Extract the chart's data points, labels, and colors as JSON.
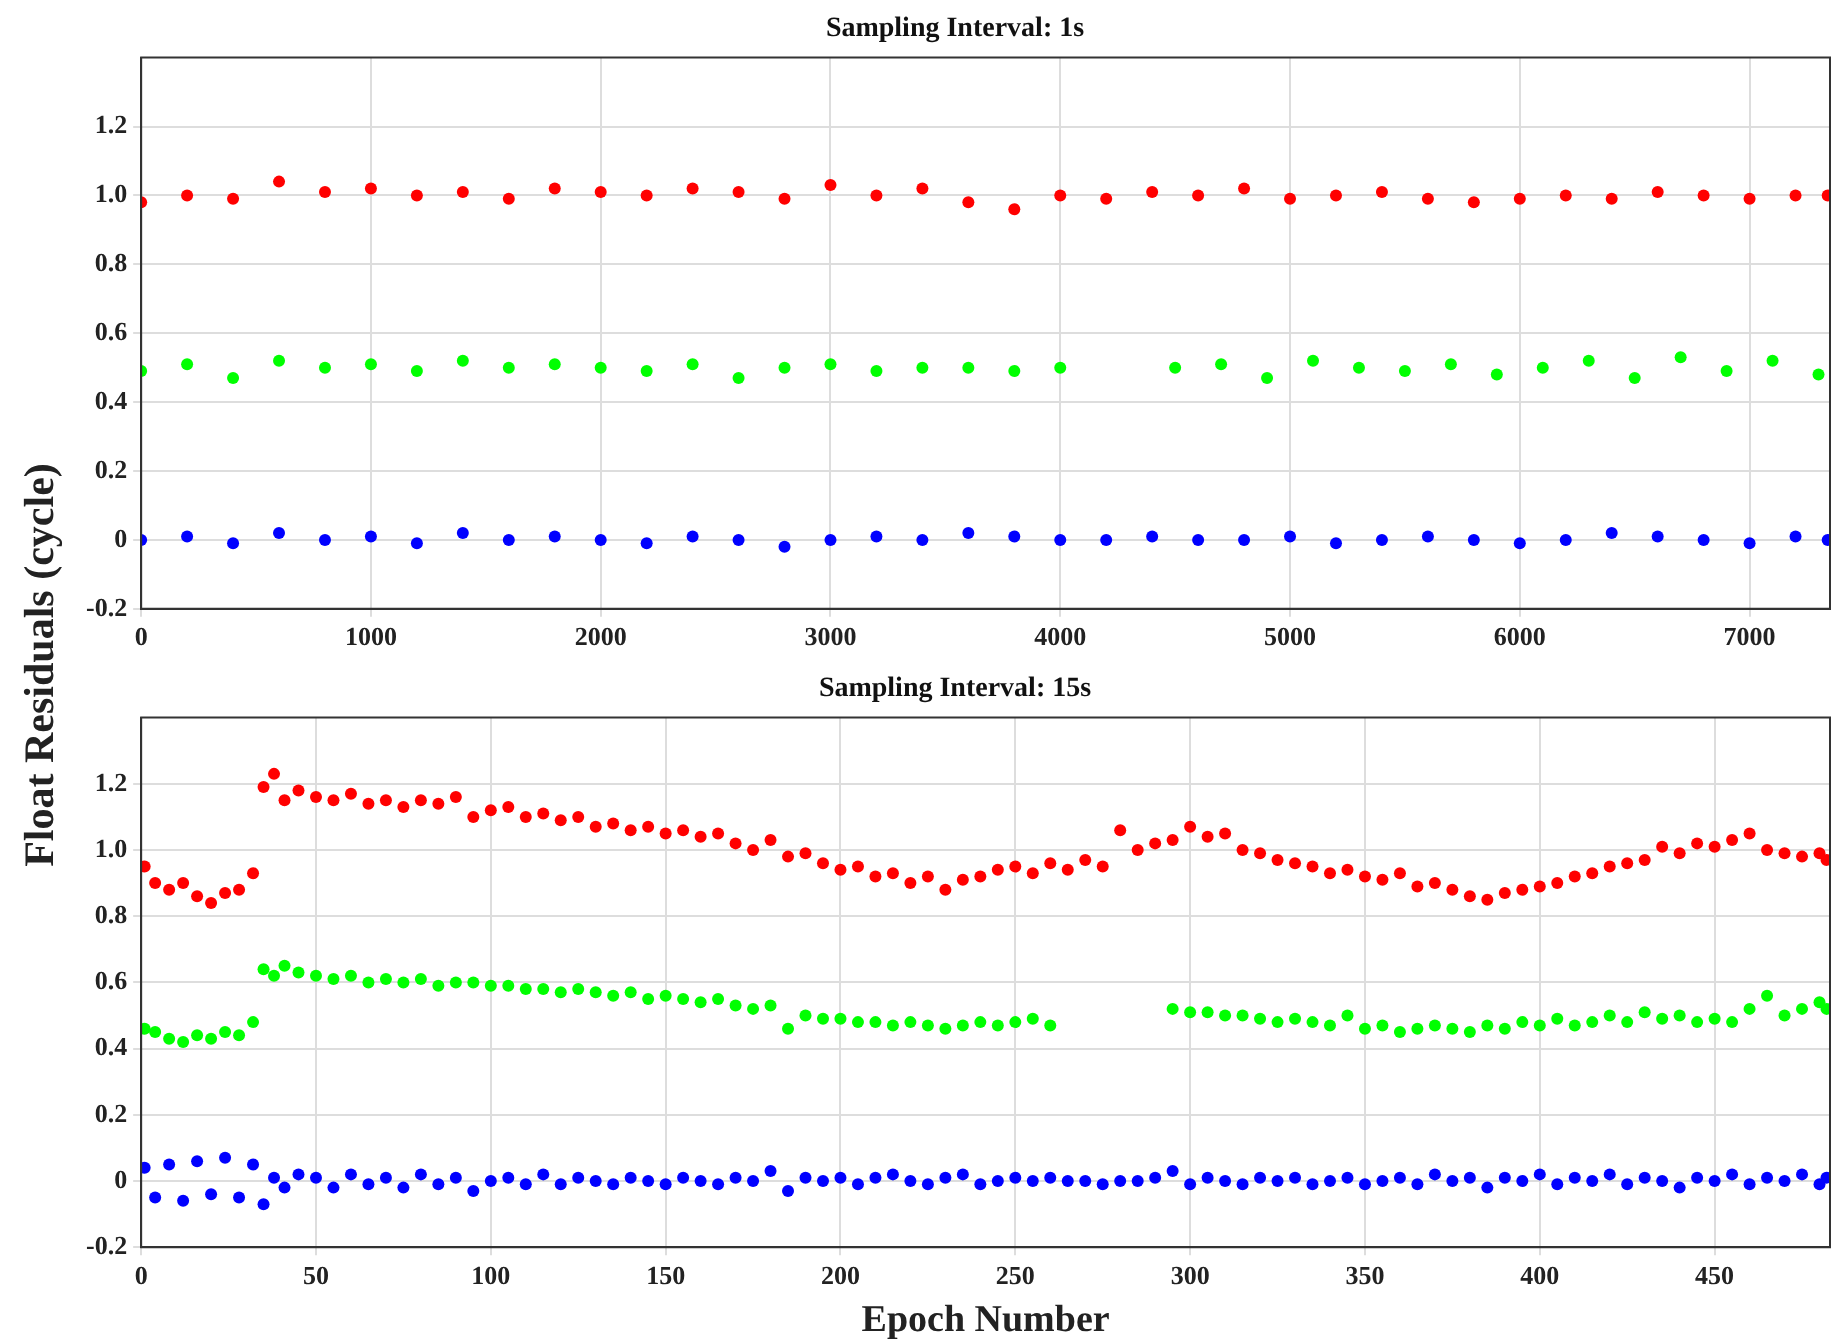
{
  "chart_data": [
    {
      "type": "scatter",
      "title": "Sampling Interval: 1s",
      "ylabel": "Float Residuals (cycle)",
      "xlim": [
        0,
        7350
      ],
      "ylim": [
        -0.2,
        1.4
      ],
      "xticks": [
        0,
        1000,
        2000,
        3000,
        4000,
        5000,
        6000,
        7000
      ],
      "yticks": [
        -0.2,
        0,
        0.2,
        0.4,
        0.6,
        0.8,
        {
          "value": 1,
          "label": "1.0"
        },
        1.2
      ],
      "grid": true,
      "marker": "circle",
      "series": [
        {
          "color": "#ff0000",
          "x": [
            0,
            200,
            400,
            600,
            800,
            1000,
            1200,
            1400,
            1600,
            1800,
            2000,
            2200,
            2400,
            2600,
            2800,
            3000,
            3200,
            3400,
            3600,
            3800,
            4000,
            4200,
            4400,
            4600,
            4800,
            5000,
            5200,
            5400,
            5600,
            5800,
            6000,
            6200,
            6400,
            6600,
            6800,
            7000,
            7200,
            7340
          ],
          "values": [
            0.98,
            1.0,
            0.99,
            1.04,
            1.01,
            1.02,
            1.0,
            1.01,
            0.99,
            1.02,
            1.01,
            1.0,
            1.02,
            1.01,
            0.99,
            1.03,
            1.0,
            1.02,
            0.98,
            0.96,
            1.0,
            0.99,
            1.01,
            1.0,
            1.02,
            0.99,
            1.0,
            1.01,
            0.99,
            0.98,
            0.99,
            1.0,
            0.99,
            1.01,
            1.0,
            0.99,
            1.0,
            1.0
          ]
        },
        {
          "color": "#00ff00",
          "x": [
            0,
            200,
            400,
            600,
            800,
            1000,
            1200,
            1400,
            1600,
            1800,
            2000,
            2200,
            2400,
            2600,
            2800,
            3000,
            3200,
            3400,
            3600,
            3800,
            4000,
            4500,
            4700,
            4900,
            5100,
            5300,
            5500,
            5700,
            5900,
            6100,
            6300,
            6500,
            6700,
            6900,
            7100,
            7300
          ],
          "values": [
            0.49,
            0.51,
            0.47,
            0.52,
            0.5,
            0.51,
            0.49,
            0.52,
            0.5,
            0.51,
            0.5,
            0.49,
            0.51,
            0.47,
            0.5,
            0.51,
            0.49,
            0.5,
            0.5,
            0.49,
            0.5,
            0.5,
            0.51,
            0.47,
            0.52,
            0.5,
            0.49,
            0.51,
            0.48,
            0.5,
            0.52,
            0.47,
            0.53,
            0.49,
            0.52,
            0.48
          ]
        },
        {
          "color": "#0000ff",
          "x": [
            0,
            200,
            400,
            600,
            800,
            1000,
            1200,
            1400,
            1600,
            1800,
            2000,
            2200,
            2400,
            2600,
            2800,
            3000,
            3200,
            3400,
            3600,
            3800,
            4000,
            4200,
            4400,
            4600,
            4800,
            5000,
            5200,
            5400,
            5600,
            5800,
            6000,
            6200,
            6400,
            6600,
            6800,
            7000,
            7200,
            7340
          ],
          "values": [
            0.0,
            0.01,
            -0.01,
            0.02,
            0.0,
            0.01,
            -0.01,
            0.02,
            0.0,
            0.01,
            0.0,
            -0.01,
            0.01,
            0.0,
            -0.02,
            0.0,
            0.01,
            0.0,
            0.02,
            0.01,
            0.0,
            0.0,
            0.01,
            0.0,
            0.0,
            0.01,
            -0.01,
            0.0,
            0.01,
            0.0,
            -0.01,
            0.0,
            0.02,
            0.01,
            0.0,
            -0.01,
            0.01,
            0.0
          ]
        }
      ]
    },
    {
      "type": "scatter",
      "title": "Sampling Interval: 15s",
      "xlabel": "Epoch Number",
      "xlim": [
        0,
        483
      ],
      "ylim": [
        -0.2,
        1.4
      ],
      "xticks": [
        0,
        50,
        100,
        150,
        200,
        250,
        300,
        350,
        400,
        450
      ],
      "yticks": [
        -0.2,
        0,
        0.2,
        0.4,
        0.6,
        0.8,
        {
          "value": 1,
          "label": "1.0"
        },
        1.2
      ],
      "grid": true,
      "marker": "circle",
      "series": [
        {
          "color": "#ff0000",
          "x": [
            1,
            4,
            8,
            12,
            16,
            20,
            24,
            28,
            32,
            35,
            38,
            41,
            45,
            50,
            55,
            60,
            65,
            70,
            75,
            80,
            85,
            90,
            95,
            100,
            105,
            110,
            115,
            120,
            125,
            130,
            135,
            140,
            145,
            150,
            155,
            160,
            165,
            170,
            175,
            180,
            185,
            190,
            195,
            200,
            205,
            210,
            215,
            220,
            225,
            230,
            235,
            240,
            245,
            250,
            255,
            260,
            265,
            270,
            275,
            280,
            285,
            290,
            295,
            300,
            305,
            310,
            315,
            320,
            325,
            330,
            335,
            340,
            345,
            350,
            355,
            360,
            365,
            370,
            375,
            380,
            385,
            390,
            395,
            400,
            405,
            410,
            415,
            420,
            425,
            430,
            435,
            440,
            445,
            450,
            455,
            460,
            465,
            470,
            475,
            480,
            482
          ],
          "values": [
            0.95,
            0.9,
            0.88,
            0.9,
            0.86,
            0.84,
            0.87,
            0.88,
            0.93,
            1.19,
            1.23,
            1.15,
            1.18,
            1.16,
            1.15,
            1.17,
            1.14,
            1.15,
            1.13,
            1.15,
            1.14,
            1.16,
            1.1,
            1.12,
            1.13,
            1.1,
            1.11,
            1.09,
            1.1,
            1.07,
            1.08,
            1.06,
            1.07,
            1.05,
            1.06,
            1.04,
            1.05,
            1.02,
            1.0,
            1.03,
            0.98,
            0.99,
            0.96,
            0.94,
            0.95,
            0.92,
            0.93,
            0.9,
            0.92,
            0.88,
            0.91,
            0.92,
            0.94,
            0.95,
            0.93,
            0.96,
            0.94,
            0.97,
            0.95,
            1.06,
            1.0,
            1.02,
            1.03,
            1.07,
            1.04,
            1.05,
            1.0,
            0.99,
            0.97,
            0.96,
            0.95,
            0.93,
            0.94,
            0.92,
            0.91,
            0.93,
            0.89,
            0.9,
            0.88,
            0.86,
            0.85,
            0.87,
            0.88,
            0.89,
            0.9,
            0.92,
            0.93,
            0.95,
            0.96,
            0.97,
            1.01,
            0.99,
            1.02,
            1.01,
            1.03,
            1.05,
            1.0,
            0.99,
            0.98,
            0.99,
            0.97
          ]
        },
        {
          "color": "#00ff00",
          "x": [
            1,
            4,
            8,
            12,
            16,
            20,
            24,
            28,
            32,
            35,
            38,
            41,
            45,
            50,
            55,
            60,
            65,
            70,
            75,
            80,
            85,
            90,
            95,
            100,
            105,
            110,
            115,
            120,
            125,
            130,
            135,
            140,
            145,
            150,
            155,
            160,
            165,
            170,
            175,
            180,
            185,
            190,
            195,
            200,
            205,
            210,
            215,
            220,
            225,
            230,
            235,
            240,
            245,
            250,
            255,
            260,
            295,
            300,
            305,
            310,
            315,
            320,
            325,
            330,
            335,
            340,
            345,
            350,
            355,
            360,
            365,
            370,
            375,
            380,
            385,
            390,
            395,
            400,
            405,
            410,
            415,
            420,
            425,
            430,
            435,
            440,
            445,
            450,
            455,
            460,
            465,
            470,
            475,
            480,
            482
          ],
          "values": [
            0.46,
            0.45,
            0.43,
            0.42,
            0.44,
            0.43,
            0.45,
            0.44,
            0.48,
            0.64,
            0.62,
            0.65,
            0.63,
            0.62,
            0.61,
            0.62,
            0.6,
            0.61,
            0.6,
            0.61,
            0.59,
            0.6,
            0.6,
            0.59,
            0.59,
            0.58,
            0.58,
            0.57,
            0.58,
            0.57,
            0.56,
            0.57,
            0.55,
            0.56,
            0.55,
            0.54,
            0.55,
            0.53,
            0.52,
            0.53,
            0.46,
            0.5,
            0.49,
            0.49,
            0.48,
            0.48,
            0.47,
            0.48,
            0.47,
            0.46,
            0.47,
            0.48,
            0.47,
            0.48,
            0.49,
            0.47,
            0.52,
            0.51,
            0.51,
            0.5,
            0.5,
            0.49,
            0.48,
            0.49,
            0.48,
            0.47,
            0.5,
            0.46,
            0.47,
            0.45,
            0.46,
            0.47,
            0.46,
            0.45,
            0.47,
            0.46,
            0.48,
            0.47,
            0.49,
            0.47,
            0.48,
            0.5,
            0.48,
            0.51,
            0.49,
            0.5,
            0.48,
            0.49,
            0.48,
            0.52,
            0.56,
            0.5,
            0.52,
            0.54,
            0.52
          ]
        },
        {
          "color": "#0000ff",
          "x": [
            1,
            4,
            8,
            12,
            16,
            20,
            24,
            28,
            32,
            35,
            38,
            41,
            45,
            50,
            55,
            60,
            65,
            70,
            75,
            80,
            85,
            90,
            95,
            100,
            105,
            110,
            115,
            120,
            125,
            130,
            135,
            140,
            145,
            150,
            155,
            160,
            165,
            170,
            175,
            180,
            185,
            190,
            195,
            200,
            205,
            210,
            215,
            220,
            225,
            230,
            235,
            240,
            245,
            250,
            255,
            260,
            265,
            270,
            275,
            280,
            285,
            290,
            295,
            300,
            305,
            310,
            315,
            320,
            325,
            330,
            335,
            340,
            345,
            350,
            355,
            360,
            365,
            370,
            375,
            380,
            385,
            390,
            395,
            400,
            405,
            410,
            415,
            420,
            425,
            430,
            435,
            440,
            445,
            450,
            455,
            460,
            465,
            470,
            475,
            480,
            482
          ],
          "values": [
            0.04,
            -0.05,
            0.05,
            -0.06,
            0.06,
            -0.04,
            0.07,
            -0.05,
            0.05,
            -0.07,
            0.01,
            -0.02,
            0.02,
            0.01,
            -0.02,
            0.02,
            -0.01,
            0.01,
            -0.02,
            0.02,
            -0.01,
            0.01,
            -0.03,
            0.0,
            0.01,
            -0.01,
            0.02,
            -0.01,
            0.01,
            0.0,
            -0.01,
            0.01,
            0.0,
            -0.01,
            0.01,
            0.0,
            -0.01,
            0.01,
            0.0,
            0.03,
            -0.03,
            0.01,
            0.0,
            0.01,
            -0.01,
            0.01,
            0.02,
            0.0,
            -0.01,
            0.01,
            0.02,
            -0.01,
            0.0,
            0.01,
            0.0,
            0.01,
            0.0,
            0.0,
            -0.01,
            0.0,
            0.0,
            0.01,
            0.03,
            -0.01,
            0.01,
            0.0,
            -0.01,
            0.01,
            0.0,
            0.01,
            -0.01,
            0.0,
            0.01,
            -0.01,
            0.0,
            0.01,
            -0.01,
            0.02,
            0.0,
            0.01,
            -0.02,
            0.01,
            0.0,
            0.02,
            -0.01,
            0.01,
            0.0,
            0.02,
            -0.01,
            0.01,
            0.0,
            -0.02,
            0.01,
            0.0,
            0.02,
            -0.01,
            0.01,
            0.0,
            0.02,
            -0.01,
            0.01
          ]
        }
      ]
    }
  ]
}
